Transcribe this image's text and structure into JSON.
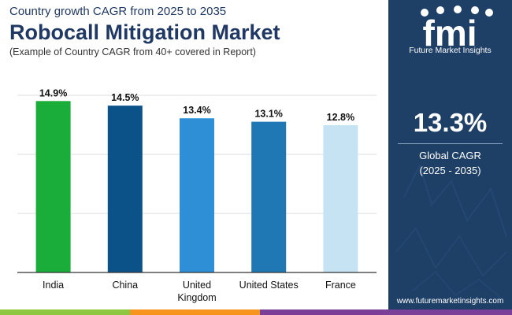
{
  "header": {
    "subtitle": "Country growth CAGR from 2025 to 2035",
    "title": "Robocall Mitigation Market",
    "note": "(Example of Country CAGR from 40+ covered in Report)"
  },
  "sidebar": {
    "logo_text": "fmi",
    "brand": "Future Market Insights",
    "cagr_value": "13.3%",
    "cagr_label": "Global CAGR",
    "cagr_period": "(2025 - 2035)",
    "website": "www.futuremarketinsights.com"
  },
  "colors": {
    "navy": "#1e3f66",
    "title": "#1f3864",
    "strip": [
      "#8dc63f",
      "#f7941d",
      "#7b3f98"
    ]
  },
  "chart_data": {
    "type": "bar",
    "categories": [
      "India",
      "China",
      "United Kingdom",
      "United States",
      "France"
    ],
    "category_lines": [
      [
        "India"
      ],
      [
        "China"
      ],
      [
        "United",
        "Kingdom"
      ],
      [
        "United States"
      ],
      [
        "France"
      ]
    ],
    "values": [
      14.9,
      14.5,
      13.4,
      13.1,
      12.8
    ],
    "value_labels": [
      "14.9%",
      "14.5%",
      "13.4%",
      "13.1%",
      "12.8%"
    ],
    "bar_colors": [
      "#1aad3a",
      "#0b5289",
      "#2f8fd6",
      "#1f77b4",
      "#c5e3f3"
    ],
    "ylim": [
      0,
      15.4
    ],
    "unit": "%",
    "grid": true,
    "title": "Robocall Mitigation Market",
    "xlabel": "",
    "ylabel": ""
  }
}
